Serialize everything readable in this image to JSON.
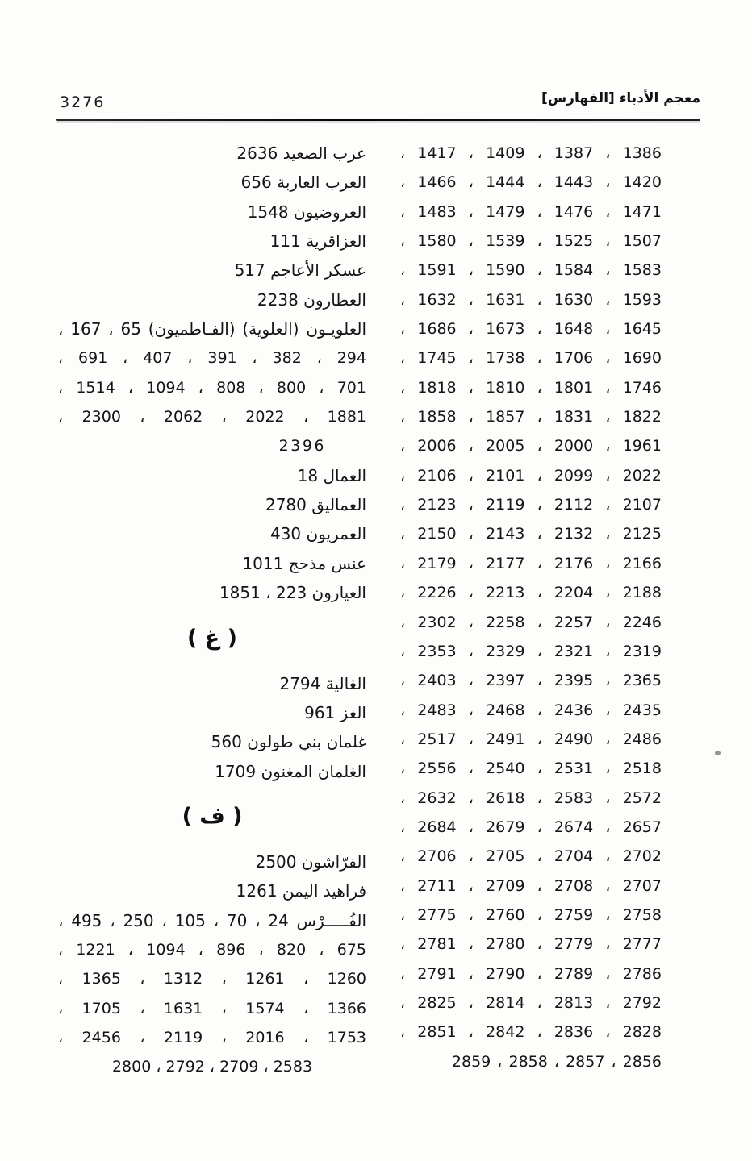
{
  "page": {
    "number": "3276",
    "running_head": "معجم الأدباء [الفهارس]"
  },
  "colors": {
    "ink": "#141414",
    "paper": "#fdfdfb"
  },
  "right_column": {
    "description_rows_are_page_references": "continuation of page-number references, read right-to-left",
    "rows": [
      "1386 ، 1387 ، 1409 ، 1417 ،",
      "1420 ، 1443 ، 1444 ، 1466 ،",
      "1471 ، 1476 ، 1479 ، 1483 ،",
      "1507 ، 1525 ، 1539 ، 1580 ،",
      "1583 ، 1584 ، 1590 ، 1591 ،",
      "1593 ، 1630 ، 1631 ، 1632 ،",
      "1645 ، 1648 ، 1673 ، 1686 ،",
      "1690 ، 1706 ، 1738 ، 1745 ،",
      "1746 ، 1801 ، 1810 ، 1818 ،",
      "1822 ، 1831 ، 1857 ، 1858 ،",
      "1961 ، 2000 ، 2005 ، 2006 ،",
      "2022 ، 2099 ، 2101 ، 2106 ،",
      "2107 ، 2112 ، 2119 ، 2123 ،",
      "2125 ، 2132 ، 2143 ، 2150 ،",
      "2166 ، 2176 ، 2177 ، 2179 ،",
      "2188 ، 2204 ، 2213 ، 2226 ،",
      "2246 ، 2257 ، 2258 ، 2302 ،",
      "2319 ، 2321 ، 2329 ، 2353 ،",
      "2365 ، 2395 ، 2397 ، 2403 ،",
      "2435 ، 2436 ، 2468 ، 2483 ،",
      "2486 ، 2490 ، 2491 ، 2517 ،",
      "2518 ، 2531 ، 2540 ، 2556 ،",
      "2572 ، 2583 ، 2618 ، 2632 ،",
      "2657 ، 2674 ، 2679 ، 2684 ،",
      "2702 ، 2704 ، 2705 ، 2706 ،",
      "2707 ، 2708 ، 2709 ، 2711 ،",
      "2758 ، 2759 ، 2760 ، 2775 ،",
      "2777 ، 2779 ، 2780 ، 2781 ،",
      "2786 ، 2789 ، 2790 ، 2791 ،",
      "2792 ، 2813 ، 2814 ، 2825 ،",
      "2828 ، 2836 ، 2842 ، 2851 ،",
      "2856 ، 2857 ، 2858 ، 2859"
    ]
  },
  "left_column": {
    "lines": [
      "عرب الصعيد 2636",
      "العرب العاربة 656",
      "العروضيون 1548",
      "العزاقرية 111",
      "عسكر الأعاجم 517",
      "العطارون 2238",
      "العلويـون (العلوية) (الفـاطميون) 65 ، 167 ،",
      "294 ، 382 ، 391 ، 407 ، 691 ،",
      "701 ، 800 ، 808 ، 1094 ، 1514 ،",
      "1881 ، 2022 ، 2062 ، 2300 ،",
      "2396",
      "العمال 18",
      "العماليق 2780",
      "العمريون 430",
      "عنس مذحج 1011",
      "العيارون 223 ، 1851",
      "( غ )",
      "الغالية 2794",
      "الغز 961",
      "غلمان بني طولون 560",
      "الغلمان المغنون 1709",
      "( ف )",
      "الفرّاشون 2500",
      "فراهيد اليمن 1261",
      "الفُـــــرْس 24 ، 70 ، 105 ، 250 ، 495 ،",
      "675 ، 820 ، 896 ، 1094 ، 1221 ،",
      "1260 ، 1261 ، 1312 ، 1365 ،",
      "1366 ، 1574 ، 1631 ، 1705 ،",
      "1753 ، 2016 ، 2119 ، 2456 ،",
      "2583 ، 2709 ، 2792 ، 2800"
    ]
  }
}
